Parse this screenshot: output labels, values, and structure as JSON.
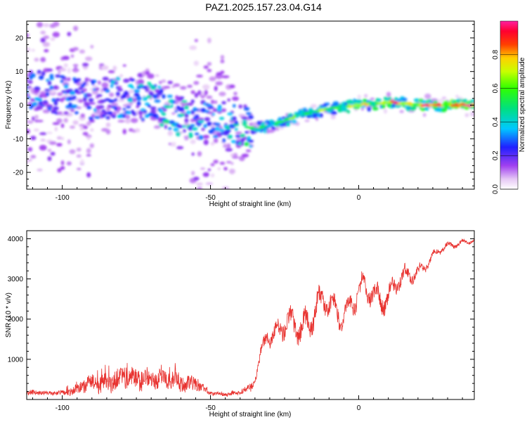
{
  "title": "PAZ1.2025.157.23.04.G14",
  "chart_data": [
    {
      "type": "heatmap",
      "xlabel": "Height of straight line (km)",
      "ylabel": "Frequency (Hz)",
      "xlim": [
        -112,
        39
      ],
      "ylim": [
        -25,
        25
      ],
      "xticks": [
        -100,
        -50,
        0
      ],
      "yticks": [
        -20,
        -10,
        0,
        10,
        20
      ],
      "colorbar": {
        "label": "Normalized spectral amplitude",
        "range": [
          0,
          1
        ],
        "ticks": [
          "0.0",
          "0.2",
          "0.4",
          "0.6",
          "0.8"
        ],
        "colormap": "rainbow (white-purple-blue-cyan-green-yellow-red-magenta)"
      },
      "ridge": {
        "x": [
          -110,
          -100,
          -90,
          -80,
          -70,
          -60,
          -50,
          -40,
          -35,
          -30,
          -20,
          -10,
          0,
          10,
          20,
          30,
          38
        ],
        "freq": [
          5,
          3,
          2,
          2,
          1,
          -3,
          -4,
          -6,
          -7,
          -6,
          -3,
          -1,
          0,
          1,
          0,
          0,
          0
        ],
        "amplitude": [
          0.35,
          0.3,
          0.3,
          0.35,
          0.4,
          0.45,
          0.3,
          0.45,
          0.5,
          0.55,
          0.6,
          0.6,
          0.7,
          0.8,
          0.85,
          0.9,
          0.95
        ]
      }
    },
    {
      "type": "line",
      "xlabel": "Height of straight line (km)",
      "ylabel": "SNR (10 * v/v)",
      "xlim": [
        -112,
        39
      ],
      "ylim": [
        0,
        4200
      ],
      "xticks": [
        -100,
        -50,
        0
      ],
      "yticks": [
        1000,
        2000,
        3000,
        4000
      ],
      "color": "#e8322f",
      "envelope": {
        "x": [
          -112,
          -105,
          -100,
          -95,
          -90,
          -80,
          -70,
          -60,
          -55,
          -50,
          -45,
          -40,
          -36,
          -34,
          -31,
          -28,
          -25,
          -20,
          -15,
          -10,
          -5,
          0,
          5,
          10,
          15,
          20,
          25,
          30,
          35,
          39
        ],
        "mean": [
          180,
          150,
          170,
          250,
          380,
          500,
          500,
          450,
          380,
          150,
          140,
          160,
          300,
          900,
          1800,
          1500,
          1700,
          2000,
          2100,
          2300,
          2300,
          2500,
          2700,
          2650,
          2900,
          3250,
          3550,
          3800,
          3950,
          3950
        ],
        "amplitude": [
          80,
          60,
          80,
          180,
          280,
          320,
          320,
          280,
          220,
          60,
          60,
          70,
          150,
          350,
          500,
          500,
          600,
          700,
          700,
          650,
          600,
          600,
          600,
          550,
          450,
          300,
          200,
          150,
          120,
          120
        ]
      }
    }
  ]
}
